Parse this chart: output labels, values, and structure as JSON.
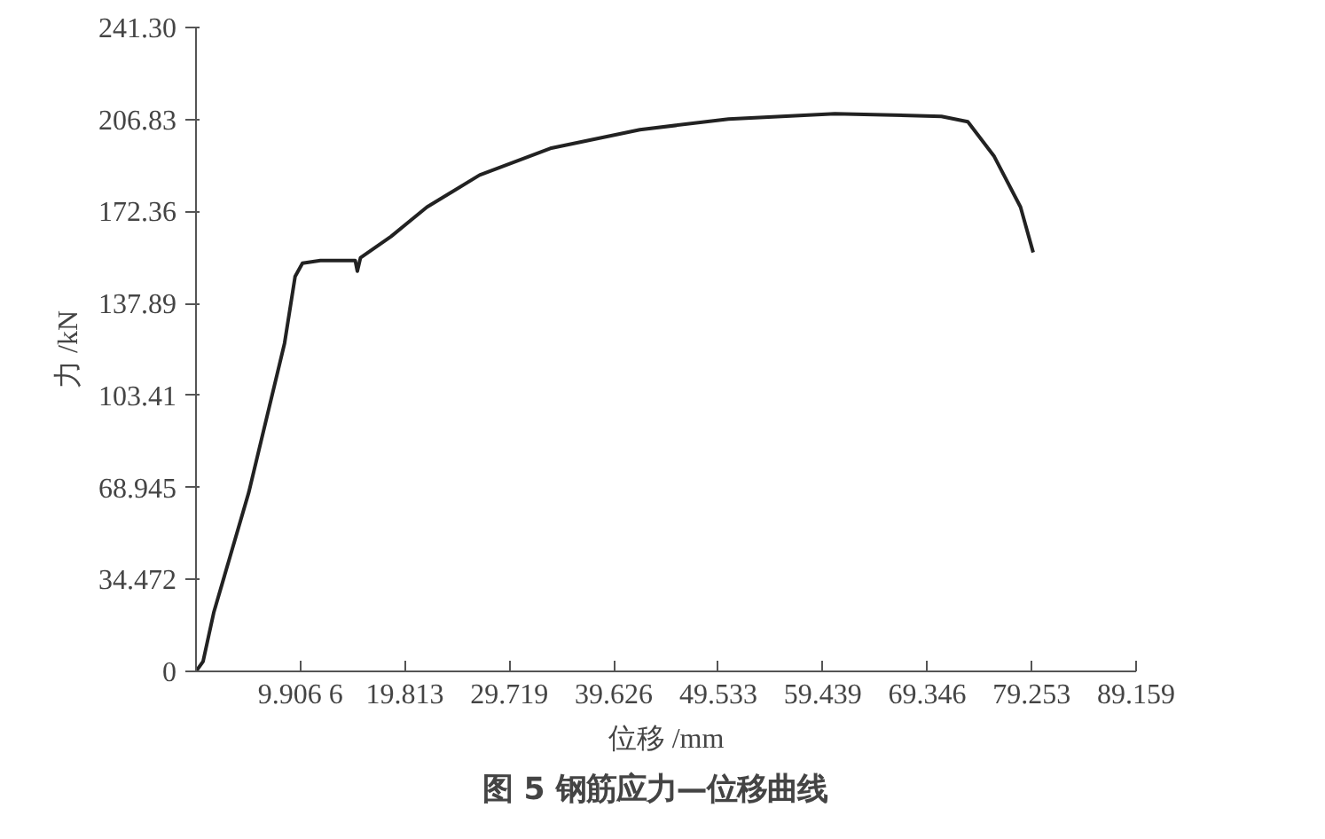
{
  "chart_data": {
    "type": "line",
    "title": "图 5   钢筋应力—位移曲线",
    "xlabel": "位移 /mm",
    "ylabel": "力 /kN",
    "x": [
      0,
      0.67,
      1.68,
      5.0,
      8.4,
      9.4,
      10.1,
      11.8,
      15.1,
      15.3,
      15.6,
      18.5,
      21.9,
      26.9,
      33.6,
      42.1,
      50.5,
      60.6,
      70.7,
      73.2,
      75.7,
      78.2,
      79.4
    ],
    "series": [
      {
        "color": "#222222",
        "values": [
          0,
          3.7,
          22,
          67,
          123,
          148,
          153,
          154,
          154,
          150,
          155,
          163,
          174,
          186,
          196,
          203,
          207,
          209,
          208,
          206,
          193,
          174,
          157
        ]
      }
    ],
    "xlim": [
      0,
      89.159
    ],
    "ylim": [
      0,
      241.3
    ],
    "xticks": [
      {
        "value": 9.9066,
        "label": "9.906 6"
      },
      19.813,
      29.719,
      39.626,
      49.533,
      59.439,
      69.346,
      79.253,
      89.159
    ],
    "yticks": [
      0,
      34.472,
      68.945,
      103.41,
      137.89,
      172.36,
      206.83,
      {
        "value": 241.3,
        "label": "241.30"
      }
    ],
    "grid": false,
    "marker": "none",
    "line_style": "solid"
  }
}
